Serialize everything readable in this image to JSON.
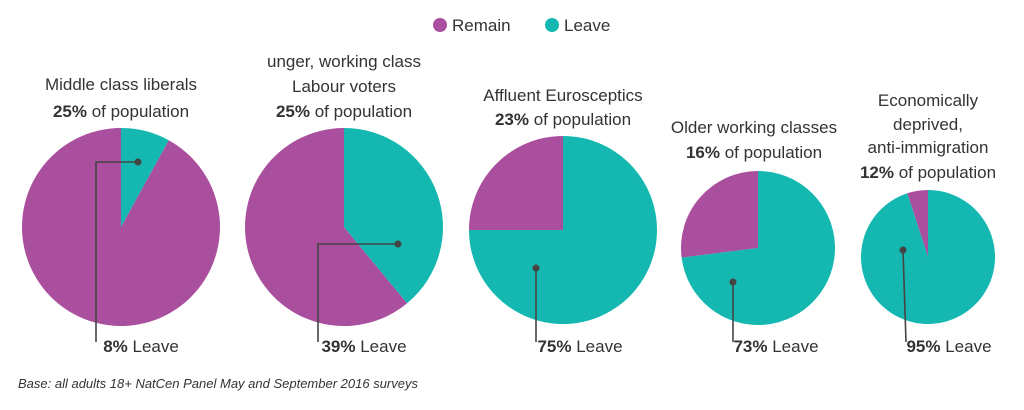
{
  "chart_data": {
    "type": "pie",
    "legend": {
      "placement": "top-center",
      "entries": [
        {
          "name": "Remain",
          "color": "#a94f9e"
        },
        {
          "name": "Leave",
          "color": "#14b8b0"
        }
      ]
    },
    "segments": [
      {
        "title_lines": [
          "Middle class liberals"
        ],
        "share_text": "25%",
        "share_suffix": " of population",
        "leave_pct": 8,
        "remain_pct": 92,
        "leave_label_pct": "8%",
        "leave_label_suffix": " Leave"
      },
      {
        "title_lines": [
          "unger, working class",
          "Labour voters"
        ],
        "share_text": "25%",
        "share_suffix": " of population",
        "leave_pct": 39,
        "remain_pct": 61,
        "leave_label_pct": "39%",
        "leave_label_suffix": " Leave"
      },
      {
        "title_lines": [
          "Affluent Eurosceptics"
        ],
        "share_text": "23%",
        "share_suffix": " of population",
        "leave_pct": 75,
        "remain_pct": 25,
        "leave_label_pct": "75%",
        "leave_label_suffix": " Leave"
      },
      {
        "title_lines": [
          "Older working classes"
        ],
        "share_text": "16%",
        "share_suffix": " of population",
        "leave_pct": 73,
        "remain_pct": 27,
        "leave_label_pct": "73%",
        "leave_label_suffix": " Leave"
      },
      {
        "title_lines": [
          "Economically",
          "deprived,",
          "anti-immigration"
        ],
        "share_text": "12%",
        "share_suffix": " of population",
        "leave_pct": 95,
        "remain_pct": 5,
        "leave_label_pct": "95%",
        "leave_label_suffix": " Leave"
      }
    ]
  },
  "footnote": "Base: all adults 18+ NatCen Panel May and September 2016 surveys"
}
